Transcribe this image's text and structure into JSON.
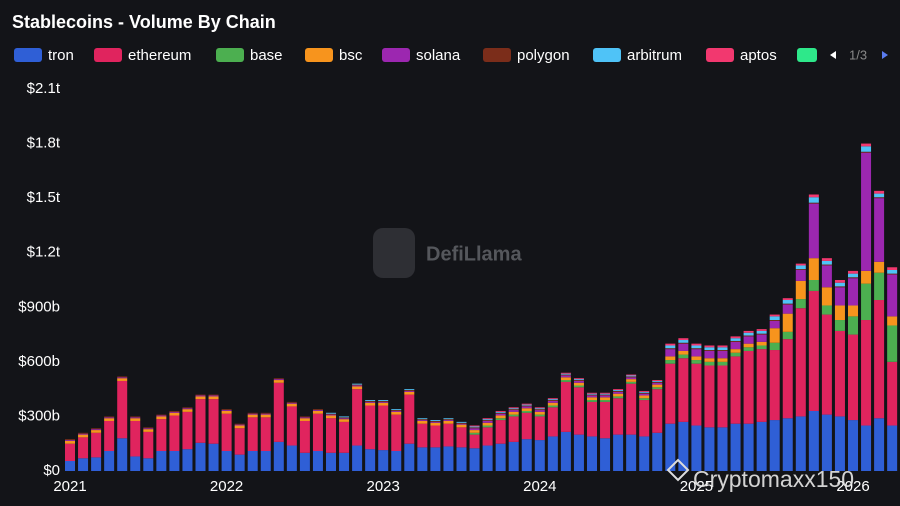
{
  "chart_data": {
    "type": "stacked-bar",
    "title": "Stablecoins - Volume By Chain",
    "legend_page": "1/3",
    "watermark": "DefiLlama",
    "credit": "Cryptomaxx150",
    "categories": [
      "2021",
      null,
      null,
      null,
      null,
      null,
      null,
      null,
      null,
      null,
      null,
      null,
      "2022",
      null,
      null,
      null,
      null,
      null,
      null,
      null,
      null,
      null,
      null,
      null,
      "2023",
      null,
      null,
      null,
      null,
      null,
      null,
      null,
      null,
      null,
      null,
      null,
      "2024",
      null,
      null,
      null,
      null,
      null,
      null,
      null,
      null,
      null,
      null,
      null,
      "2025",
      null,
      null,
      null,
      null,
      null,
      null,
      null,
      null,
      null,
      null,
      null,
      "2026",
      null,
      null,
      null
    ],
    "ylim": [
      0,
      2100
    ],
    "yticks": [
      {
        "value": 0,
        "label": "$0"
      },
      {
        "value": 300,
        "label": "$300b"
      },
      {
        "value": 600,
        "label": "$600b"
      },
      {
        "value": 900,
        "label": "$900b"
      },
      {
        "value": 1200,
        "label": "$1.2t"
      },
      {
        "value": 1500,
        "label": "$1.5t"
      },
      {
        "value": 1800,
        "label": "$1.8t"
      },
      {
        "value": 2100,
        "label": "$2.1t"
      }
    ],
    "series": [
      {
        "name": "tron",
        "color": "#2f5fd6",
        "values": [
          55,
          70,
          75,
          110,
          180,
          80,
          70,
          110,
          110,
          120,
          155,
          150,
          110,
          90,
          110,
          110,
          160,
          140,
          100,
          110,
          100,
          100,
          140,
          120,
          115,
          110,
          150,
          130,
          130,
          135,
          130,
          125,
          140,
          150,
          160,
          175,
          170,
          190,
          215,
          200,
          190,
          180,
          200,
          200,
          190,
          210,
          260,
          270,
          250,
          240,
          240,
          260,
          260,
          270,
          280,
          290,
          300,
          330,
          310,
          300,
          280,
          250,
          290,
          250
        ]
      },
      {
        "name": "ethereum",
        "color": "#e0245e",
        "values": [
          95,
          115,
          135,
          165,
          315,
          195,
          145,
          175,
          195,
          205,
          240,
          245,
          205,
          145,
          185,
          185,
          325,
          215,
          175,
          205,
          190,
          170,
          310,
          240,
          245,
          200,
          270,
          130,
          120,
          125,
          110,
          75,
          100,
          130,
          140,
          145,
          130,
          160,
          275,
          260,
          190,
          200,
          200,
          280,
          200,
          240,
          330,
          350,
          340,
          340,
          340,
          370,
          400,
          400,
          385,
          435,
          595,
          660,
          550,
          470,
          470,
          580,
          650,
          350
        ]
      },
      {
        "name": "base",
        "color": "#4caf50",
        "values": [
          0,
          0,
          0,
          0,
          0,
          0,
          0,
          0,
          0,
          0,
          0,
          0,
          0,
          0,
          0,
          0,
          0,
          0,
          0,
          0,
          0,
          0,
          0,
          0,
          0,
          0,
          0,
          0,
          0,
          0,
          0,
          10,
          10,
          10,
          10,
          10,
          10,
          10,
          10,
          10,
          10,
          10,
          10,
          10,
          10,
          10,
          20,
          20,
          20,
          20,
          20,
          20,
          20,
          20,
          40,
          40,
          50,
          60,
          50,
          60,
          100,
          200,
          150,
          200
        ]
      },
      {
        "name": "bsc",
        "color": "#f7941d",
        "values": [
          15,
          15,
          15,
          15,
          15,
          15,
          15,
          15,
          15,
          15,
          15,
          15,
          15,
          15,
          15,
          15,
          15,
          15,
          15,
          15,
          15,
          15,
          15,
          15,
          15,
          15,
          15,
          15,
          15,
          15,
          15,
          15,
          15,
          15,
          15,
          15,
          15,
          15,
          15,
          15,
          15,
          15,
          15,
          15,
          15,
          15,
          20,
          20,
          20,
          20,
          20,
          20,
          20,
          20,
          80,
          100,
          100,
          120,
          100,
          80,
          60,
          70,
          60,
          50
        ]
      },
      {
        "name": "solana",
        "color": "#9c27b0",
        "values": [
          5,
          5,
          5,
          5,
          5,
          5,
          5,
          5,
          5,
          5,
          5,
          5,
          5,
          5,
          5,
          5,
          5,
          5,
          5,
          5,
          5,
          5,
          5,
          5,
          5,
          5,
          5,
          5,
          5,
          5,
          5,
          10,
          10,
          10,
          10,
          10,
          10,
          10,
          10,
          10,
          10,
          10,
          10,
          10,
          10,
          10,
          40,
          40,
          40,
          40,
          40,
          40,
          40,
          40,
          40,
          50,
          60,
          300,
          120,
          100,
          150,
          650,
          350,
          230
        ]
      },
      {
        "name": "polygon",
        "color": "#7b2d1a",
        "values": [
          5,
          5,
          5,
          5,
          5,
          5,
          5,
          5,
          5,
          5,
          5,
          5,
          5,
          5,
          5,
          5,
          5,
          5,
          5,
          5,
          5,
          5,
          5,
          5,
          5,
          5,
          5,
          5,
          5,
          5,
          5,
          5,
          5,
          5,
          5,
          5,
          5,
          5,
          5,
          5,
          5,
          5,
          5,
          5,
          5,
          5,
          5,
          5,
          5,
          5,
          5,
          5,
          5,
          5,
          5,
          5,
          5,
          5,
          5,
          5,
          5,
          5,
          5,
          5
        ]
      },
      {
        "name": "arbitrum",
        "color": "#4fc3f7",
        "values": [
          0,
          0,
          0,
          0,
          0,
          0,
          0,
          0,
          0,
          0,
          0,
          0,
          0,
          0,
          0,
          0,
          0,
          0,
          0,
          0,
          5,
          5,
          5,
          5,
          5,
          5,
          5,
          5,
          5,
          5,
          5,
          5,
          5,
          5,
          5,
          5,
          5,
          5,
          5,
          5,
          5,
          5,
          5,
          5,
          5,
          5,
          15,
          15,
          15,
          15,
          15,
          15,
          15,
          15,
          20,
          20,
          20,
          30,
          20,
          20,
          20,
          30,
          20,
          20
        ]
      },
      {
        "name": "aptos",
        "color": "#f2386f",
        "values": [
          0,
          0,
          0,
          0,
          0,
          0,
          0,
          0,
          0,
          0,
          0,
          0,
          0,
          0,
          0,
          0,
          0,
          0,
          0,
          0,
          0,
          0,
          0,
          0,
          0,
          0,
          0,
          0,
          0,
          0,
          0,
          5,
          5,
          5,
          5,
          5,
          5,
          5,
          5,
          5,
          5,
          5,
          5,
          5,
          5,
          5,
          10,
          10,
          10,
          10,
          10,
          10,
          10,
          10,
          10,
          10,
          10,
          15,
          15,
          15,
          15,
          15,
          15,
          15
        ]
      }
    ]
  }
}
